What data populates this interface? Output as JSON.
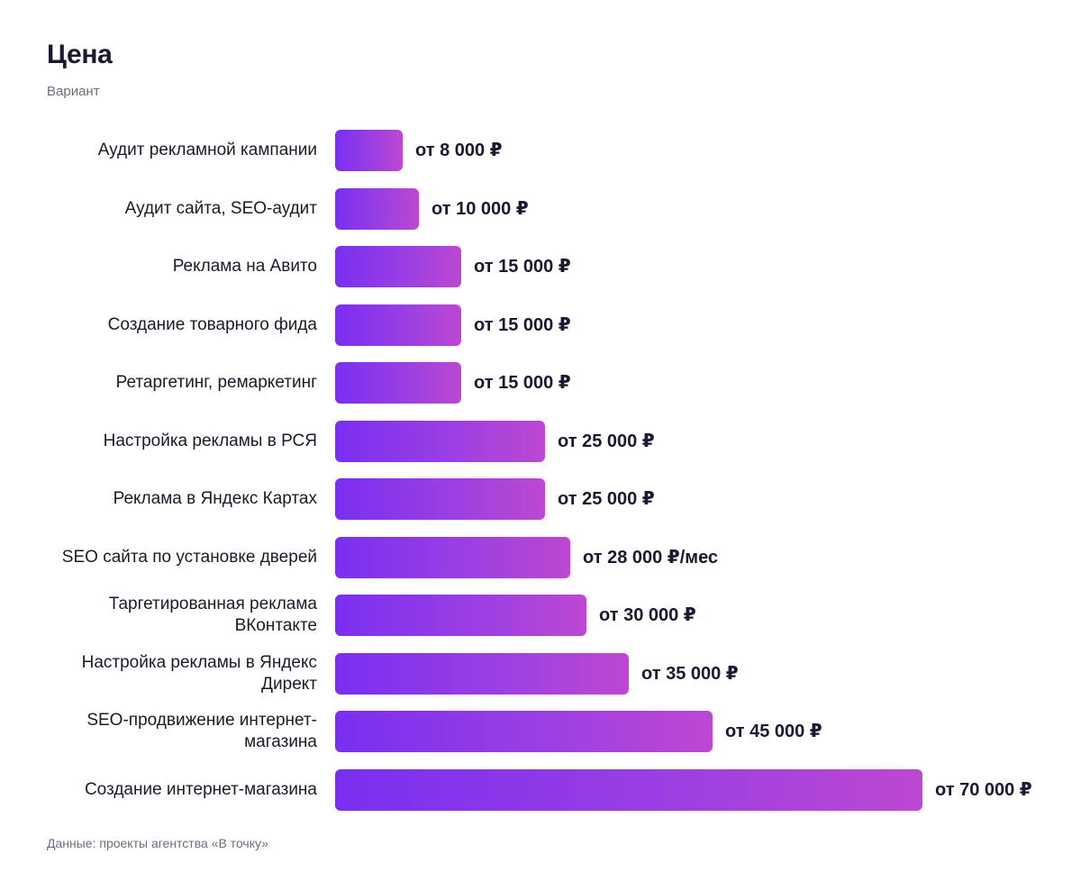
{
  "chart_data": {
    "type": "bar",
    "orientation": "horizontal",
    "title": "Цена",
    "subtitle": "Вариант",
    "source": "Данные: проекты агентства «В точку»",
    "categories": [
      "Аудит рекламной кампании",
      "Аудит сайта, SEO-аудит",
      "Реклама на Авито",
      "Создание товарного фида",
      "Ретаргетинг, ремаркетинг",
      "Настройка рекламы в РСЯ",
      "Реклама в Яндекс Картах",
      "SEO сайта по установке дверей",
      "Таргетированная реклама ВКонтакте",
      "Настройка рекламы в Яндекс Директ",
      "SEO-продвижение интернет-магазина",
      "Создание интернет-магазина"
    ],
    "values": [
      8000,
      10000,
      15000,
      15000,
      15000,
      25000,
      25000,
      28000,
      30000,
      35000,
      45000,
      70000
    ],
    "value_labels": [
      "от 8 000 ₽",
      "от 10 000 ₽",
      "от 15 000 ₽",
      "от 15 000 ₽",
      "от 15 000 ₽",
      "от 25 000 ₽",
      "от 25 000 ₽",
      "от 28 000 ₽/мес",
      "от 30 000 ₽",
      "от 35 000 ₽",
      "от 45 000 ₽",
      "от 70 000 ₽"
    ],
    "xlim": [
      0,
      70000
    ],
    "grid": false,
    "legend": "none",
    "colors": {
      "bar_start": "#7a2ff0",
      "bar_end": "#bd48d2",
      "text": "#1d1a2b",
      "muted": "#6f6b80"
    }
  }
}
